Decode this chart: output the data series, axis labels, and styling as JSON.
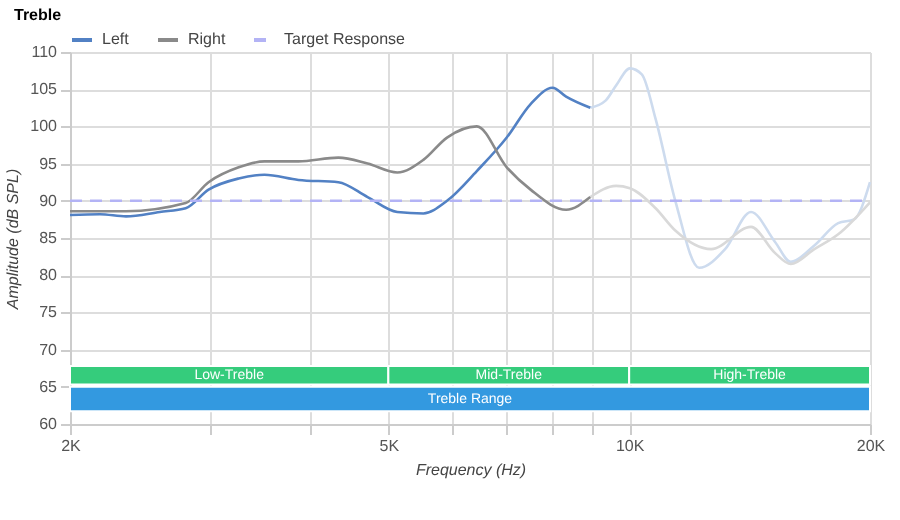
{
  "chart_data": {
    "type": "line",
    "title": "Treble",
    "xlabel": "Frequency (Hz)",
    "ylabel": "Amplitude (dB SPL)",
    "log": "x",
    "grid": true,
    "legend": "top",
    "xlim": [
      2000,
      20000
    ],
    "xticks": [
      {
        "value": 2000,
        "label": "2K"
      },
      {
        "value": 3000,
        "label": null
      },
      {
        "value": 4000,
        "label": null
      },
      {
        "value": 5000,
        "label": "5K"
      },
      {
        "value": 6000,
        "label": null
      },
      {
        "value": 7000,
        "label": null
      },
      {
        "value": 8000,
        "label": null
      },
      {
        "value": 9000,
        "label": null
      },
      {
        "value": 10000,
        "label": "10K"
      },
      {
        "value": 20000,
        "label": "20K"
      }
    ],
    "ylim": [
      60,
      110
    ],
    "yticks": [
      60,
      65,
      70,
      75,
      80,
      85,
      90,
      95,
      100,
      105,
      110
    ],
    "series": [
      {
        "color": "#cddbee",
        "x": [
          8940,
          9350,
          9630,
          10020,
          10370,
          10790,
          11420,
          12230,
          13180,
          14200,
          15210,
          15920,
          17040,
          18250,
          19110,
          20000
        ],
        "values": [
          102.5,
          103.5,
          105.5,
          107.8,
          107,
          101,
          90,
          81,
          83.5,
          88.5,
          84.5,
          81.8,
          84,
          87,
          87.5,
          92.5
        ]
      },
      {
        "color": "#d9d9d9",
        "x": [
          8940,
          9630,
          10020,
          10790,
          11420,
          12660,
          14200,
          15210,
          15920,
          17040,
          18250,
          20000
        ],
        "values": [
          90.5,
          92,
          91.7,
          89,
          86,
          83.5,
          86.5,
          83,
          81.5,
          83.5,
          85.5,
          89.8
        ]
      },
      {
        "name": "Left",
        "color": "#5281c4",
        "x": [
          2000,
          2180,
          2350,
          2590,
          2790,
          2980,
          3250,
          3500,
          3860,
          4330,
          4710,
          5130,
          5530,
          5920,
          6450,
          7030,
          7530,
          8020,
          8340,
          8940
        ],
        "values": [
          88.1,
          88.2,
          87.9,
          88.5,
          89.0,
          91.5,
          93.0,
          93.5,
          92.8,
          92.5,
          90.5,
          88.5,
          88.3,
          90.0,
          94.0,
          98.5,
          103.0,
          105.2,
          104.0,
          102.5
        ]
      },
      {
        "name": "Right",
        "color": "#8a8a8a",
        "x": [
          2000,
          2350,
          2790,
          2980,
          3250,
          3500,
          3860,
          4330,
          4710,
          5130,
          5530,
          5920,
          6450,
          7030,
          7530,
          8340,
          8940
        ],
        "values": [
          88.6,
          88.6,
          89.7,
          92.5,
          94.5,
          95.3,
          95.3,
          95.8,
          95.0,
          93.8,
          95.5,
          98.5,
          100.0,
          94.5,
          91.5,
          88.8,
          90.5
        ]
      },
      {
        "name": "Target Response",
        "color": "#b3b3f5",
        "line_style": "dashed",
        "x": [
          2000,
          20000
        ],
        "values": [
          90,
          90
        ]
      }
    ],
    "bands": [
      {
        "axis": "x",
        "from": 2000,
        "to": 5000,
        "label": "Low-Treble",
        "color": "#35cc7c"
      },
      {
        "axis": "x",
        "from": 5000,
        "to": 10000,
        "label": "Mid-Treble",
        "color": "#35cc7c"
      },
      {
        "axis": "x",
        "from": 10000,
        "to": 20000,
        "label": "High-Treble",
        "color": "#35cc7c"
      },
      {
        "axis": "x",
        "from": 2000,
        "to": 20000,
        "label": "Treble Range",
        "color": "#3399e0"
      }
    ]
  }
}
